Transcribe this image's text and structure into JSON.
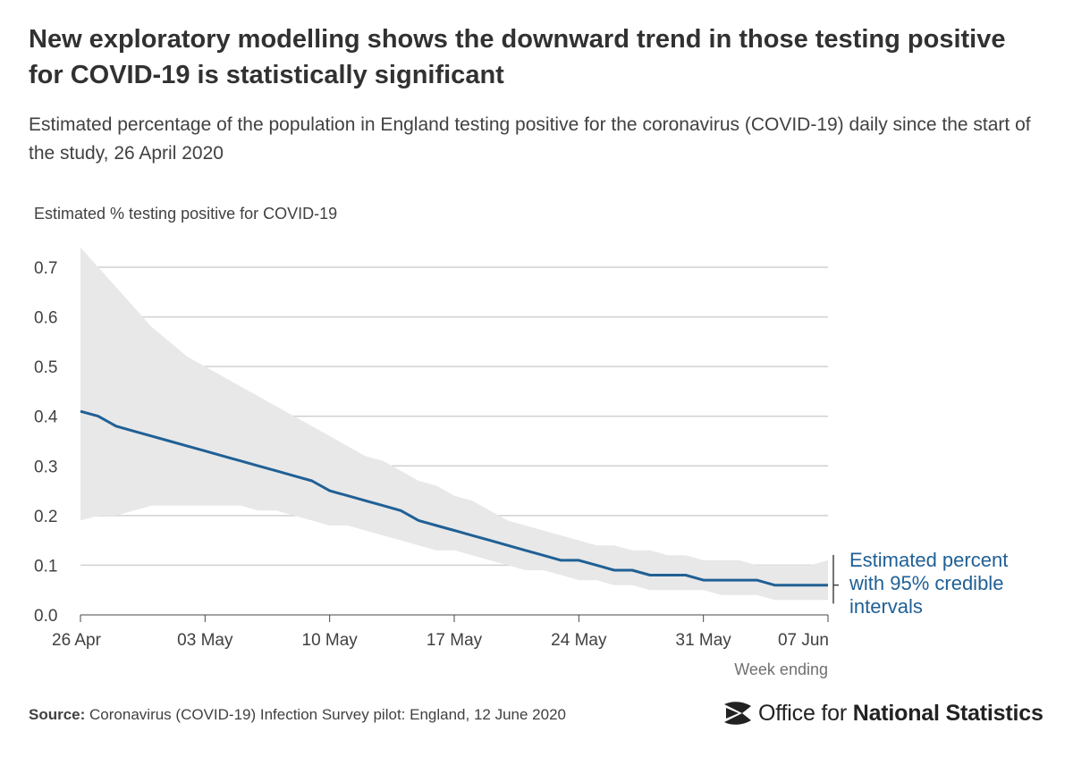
{
  "title": "New exploratory modelling shows the downward trend in those testing positive for COVID-19 is statistically significant",
  "subtitle": "Estimated percentage of the population in England testing positive for the coronavirus (COVID-19) daily since the start of the study, 26 April 2020",
  "source": {
    "label": "Source:",
    "text": "Coronavirus (COVID-19) Infection Survey pilot: England, 12 June 2020"
  },
  "logo": {
    "text_regular": "Office for ",
    "text_bold": "National Statistics",
    "icon": "ons-logo-icon"
  },
  "colors": {
    "line": "#206095",
    "band": "#e8e8e8",
    "grid": "#d0d0d0",
    "axis": "#444444",
    "text": "#414042",
    "muted": "#707071"
  },
  "chart_data": {
    "type": "line",
    "ylabel": "Estimated % testing positive for COVID-19",
    "xlabel": "Week ending",
    "ylim": [
      0,
      0.7
    ],
    "yticks": [
      0.0,
      0.1,
      0.2,
      0.3,
      0.4,
      0.5,
      0.6,
      0.7
    ],
    "ytick_labels": [
      "0.0",
      "0.1",
      "0.2",
      "0.3",
      "0.4",
      "0.5",
      "0.6",
      "0.7"
    ],
    "xticks": [
      "26 Apr",
      "03 May",
      "10 May",
      "17 May",
      "24 May",
      "31 May",
      "07 Jun"
    ],
    "grid": true,
    "annotation": "Estimated percent with 95% credible intervals",
    "x": [
      "26 Apr",
      "27 Apr",
      "28 Apr",
      "29 Apr",
      "30 Apr",
      "01 May",
      "02 May",
      "03 May",
      "04 May",
      "05 May",
      "06 May",
      "07 May",
      "08 May",
      "09 May",
      "10 May",
      "11 May",
      "12 May",
      "13 May",
      "14 May",
      "15 May",
      "16 May",
      "17 May",
      "18 May",
      "19 May",
      "20 May",
      "21 May",
      "22 May",
      "23 May",
      "24 May",
      "25 May",
      "26 May",
      "27 May",
      "28 May",
      "29 May",
      "30 May",
      "31 May",
      "01 Jun",
      "02 Jun",
      "03 Jun",
      "04 Jun",
      "05 Jun",
      "06 Jun",
      "07 Jun"
    ],
    "series": [
      {
        "values": [
          0.41,
          0.4,
          0.38,
          0.37,
          0.36,
          0.35,
          0.34,
          0.33,
          0.32,
          0.31,
          0.3,
          0.29,
          0.28,
          0.27,
          0.25,
          0.24,
          0.23,
          0.22,
          0.21,
          0.19,
          0.18,
          0.17,
          0.16,
          0.15,
          0.14,
          0.13,
          0.12,
          0.11,
          0.11,
          0.1,
          0.09,
          0.09,
          0.08,
          0.08,
          0.08,
          0.07,
          0.07,
          0.07,
          0.07,
          0.06,
          0.06,
          0.06,
          0.06
        ],
        "lower": [
          0.19,
          0.2,
          0.2,
          0.21,
          0.22,
          0.22,
          0.22,
          0.22,
          0.22,
          0.22,
          0.21,
          0.21,
          0.2,
          0.19,
          0.18,
          0.18,
          0.17,
          0.16,
          0.15,
          0.14,
          0.13,
          0.13,
          0.12,
          0.11,
          0.1,
          0.09,
          0.09,
          0.08,
          0.07,
          0.07,
          0.06,
          0.06,
          0.05,
          0.05,
          0.05,
          0.05,
          0.04,
          0.04,
          0.04,
          0.03,
          0.03,
          0.03,
          0.03
        ],
        "upper": [
          0.74,
          0.7,
          0.66,
          0.62,
          0.58,
          0.55,
          0.52,
          0.5,
          0.48,
          0.46,
          0.44,
          0.42,
          0.4,
          0.38,
          0.36,
          0.34,
          0.32,
          0.31,
          0.29,
          0.27,
          0.26,
          0.24,
          0.23,
          0.21,
          0.19,
          0.18,
          0.17,
          0.16,
          0.15,
          0.14,
          0.14,
          0.13,
          0.13,
          0.12,
          0.12,
          0.11,
          0.11,
          0.11,
          0.1,
          0.1,
          0.1,
          0.1,
          0.11
        ]
      }
    ]
  }
}
